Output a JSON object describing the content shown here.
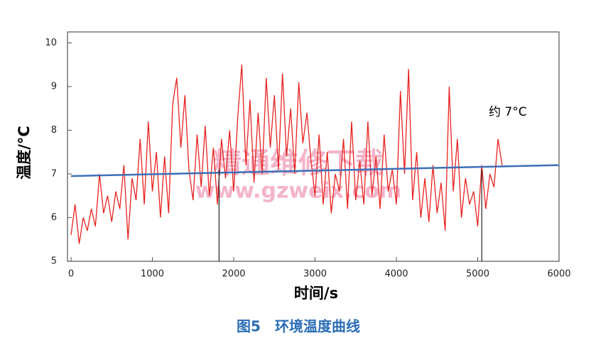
{
  "chart_data": {
    "type": "line",
    "xlabel": "时间/s",
    "ylabel": "温度/°C",
    "caption": "图5　环境温度曲线",
    "annotation": "约 7°C",
    "watermark": "精通维修下载",
    "watermark_url": "www.gzweix.com",
    "xlim": [
      0,
      6000
    ],
    "ylim": [
      5,
      10.25
    ],
    "xticks": [
      0,
      1000,
      2000,
      3000,
      4000,
      5000,
      6000
    ],
    "yticks": [
      5,
      6,
      7,
      8,
      9,
      10
    ],
    "vlines": [
      1820,
      5050
    ],
    "series": [
      {
        "color": "#e8231f",
        "x": [
          0,
          50,
          100,
          150,
          200,
          250,
          300,
          350,
          400,
          450,
          500,
          550,
          600,
          650,
          700,
          750,
          800,
          850,
          900,
          950,
          1000,
          1050,
          1100,
          1150,
          1200,
          1250,
          1300,
          1350,
          1400,
          1450,
          1500,
          1550,
          1600,
          1650,
          1700,
          1750,
          1800,
          1850,
          1900,
          1950,
          2000,
          2050,
          2100,
          2150,
          2200,
          2250,
          2300,
          2350,
          2400,
          2450,
          2500,
          2550,
          2600,
          2650,
          2700,
          2750,
          2800,
          2850,
          2900,
          2950,
          3000,
          3050,
          3100,
          3150,
          3200,
          3250,
          3300,
          3350,
          3400,
          3450,
          3500,
          3550,
          3600,
          3650,
          3700,
          3750,
          3800,
          3850,
          3900,
          3950,
          4000,
          4050,
          4100,
          4150,
          4200,
          4250,
          4300,
          4350,
          4400,
          4450,
          4500,
          4550,
          4600,
          4650,
          4700,
          4750,
          4800,
          4850,
          4900,
          4950,
          5000,
          5050,
          5100,
          5150,
          5200,
          5250,
          5300
        ],
        "values": [
          5.6,
          6.3,
          5.4,
          6.0,
          5.7,
          6.2,
          5.8,
          7.0,
          6.1,
          6.5,
          5.9,
          6.6,
          6.2,
          7.2,
          5.5,
          6.9,
          6.4,
          7.8,
          6.3,
          8.2,
          6.6,
          7.5,
          6.0,
          7.4,
          6.1,
          8.6,
          9.2,
          7.6,
          8.8,
          7.1,
          6.4,
          7.9,
          6.7,
          8.1,
          6.5,
          7.6,
          6.3,
          7.8,
          6.9,
          8.0,
          6.6,
          8.3,
          9.5,
          7.2,
          8.7,
          6.8,
          8.4,
          7.0,
          9.2,
          7.6,
          8.8,
          7.1,
          9.3,
          7.4,
          8.5,
          7.0,
          9.1,
          7.7,
          8.4,
          7.3,
          6.5,
          7.9,
          6.3,
          7.5,
          6.1,
          7.0,
          6.6,
          7.8,
          6.2,
          8.2,
          6.4,
          7.3,
          6.3,
          8.2,
          6.5,
          7.4,
          6.2,
          7.9,
          6.6,
          7.1,
          6.3,
          8.9,
          7.0,
          9.4,
          6.4,
          7.5,
          6.0,
          6.9,
          5.9,
          7.2,
          6.1,
          6.8,
          5.7,
          9.0,
          6.6,
          7.8,
          6.0,
          6.9,
          6.3,
          6.6,
          5.8,
          7.2,
          6.2,
          7.0,
          6.7,
          7.8,
          7.2
        ]
      },
      {
        "color": "#3d6fb6",
        "x": [
          0,
          6000
        ],
        "values": [
          6.95,
          7.2
        ]
      }
    ]
  }
}
